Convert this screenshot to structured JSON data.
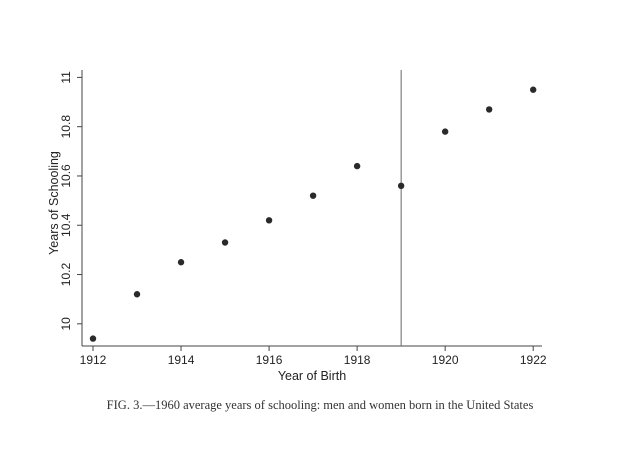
{
  "caption": "FIG. 3.—1960 average years of schooling: men and women born in the United States",
  "chart_data": {
    "type": "scatter",
    "xlabel": "Year of Birth",
    "ylabel": "Years of Schooling",
    "xlim": [
      1911.75,
      1922.2
    ],
    "ylim": [
      9.91,
      11.03
    ],
    "x_ticks": [
      "1912",
      "1914",
      "1916",
      "1918",
      "1920",
      "1922"
    ],
    "y_ticks": [
      "10",
      "10.2",
      "10.4",
      "10.6",
      "10.8",
      "11"
    ],
    "x": [
      1912,
      1913,
      1914,
      1915,
      1916,
      1917,
      1918,
      1919,
      1920,
      1921,
      1922
    ],
    "y": [
      9.94,
      10.12,
      10.25,
      10.33,
      10.42,
      10.52,
      10.64,
      10.56,
      10.78,
      10.87,
      10.95
    ],
    "vline_x": 1919,
    "grid": false,
    "legend": "none",
    "colors": {
      "marker": "#2a2a2a",
      "axis": "#444444",
      "vline": "#666666"
    }
  }
}
